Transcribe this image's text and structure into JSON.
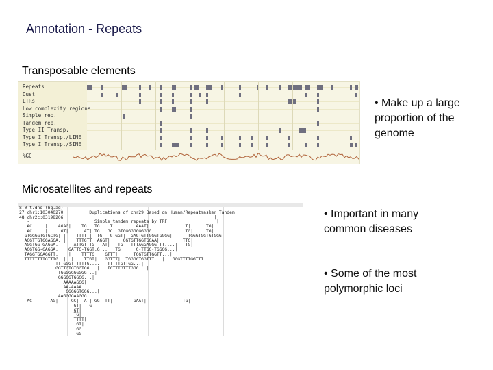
{
  "slide": {
    "title": "Annotation - Repeats",
    "section1": "Transposable elements",
    "section2": "Microsatellites and repeats"
  },
  "bullets": [
    {
      "lines": [
        "• Make up a large",
        "proportion of the",
        "genome"
      ]
    },
    {
      "lines": [
        "• Important in many",
        "common diseases"
      ]
    },
    {
      "lines": [
        "• Some of the most",
        "polymorphic loci"
      ]
    }
  ],
  "repeat_tracks": {
    "labels": [
      "Repeats",
      "Dust",
      "LTRs",
      "Low complexity regions",
      "Simple rep.",
      "Tandem rep.",
      "Type II Transp.",
      "Type I Transp./LINE",
      "Type I Transp./SINE"
    ],
    "gc_label": "%GC",
    "feature_color": "#6f6f7f"
  },
  "alignment": {
    "lines": [
      "8.0 t7dno (hg.ag)",
      "27 chr1:103040270          Duplications of chr29 Based on Human/Repeatmasker Tandem",
      "48 chr2c:03198206                                                          |",
      "   -       |                 Simple tandem repeats by TRF                   |",
      "   AC     |    AGAG|    TG|  TG|   T|        AAAT|              T|      TG|",
      "   AC     |     GT|      AT| TG|  GC| GTGGGGGGGGGGG|            TG|     TG|",
      "  GTGGGGTGTGCTG| |    TTTTT|  TG   GTGGT|  GAGTGTTGGGTGGGG|      TGGGTGGTGTGGG|",
      "  AGGTTGTGGAGGA. |    TTTGTT  AGGT|     GGTGTTGGTGGAA|         TTG|",
      "  AGGTGG-GAGGA. |    ATTGT-TG   AT|   TG   TTTAGGAGGG-TT....|   TG|",
      "  AGGTGG-GAGGA. |  GATTG-TGGT.G...   TG      G-TTGG-TGGGG...|",
      "  TAGGTGGAGGTT. |  |    TTTTG    GTTT|      TGGTGTTGGTT...|",
      "  TTTTTTTTGTTTG. |  |    TTGT|   GGTTT|  TGGGGTGGTTT...|   GGGTTTTGGTTT",
      "              TTTGGGTTTTTTG....|  TTTTTGTTGG...|",
      "              GGTTGTGTGGTGG...|   TGTTTGTTTGGG...|",
      "               TGGGGGGGGGG...|",
      "               GGGGGTGGGG...|",
      "                 AAAAAGGG|",
      "                 AA-AAAA",
      "                  GGGGGTGGG...|",
      "               AAGGGGAAGGG",
      "   AC       AG|     GC|  AT| GG| TT|        GAAT|              TG|",
      "                     GT|  TG",
      "                     GT|",
      "                     TG|",
      "                     TTTT|",
      "                      GT|",
      "                      GG",
      "                      GG"
    ]
  }
}
